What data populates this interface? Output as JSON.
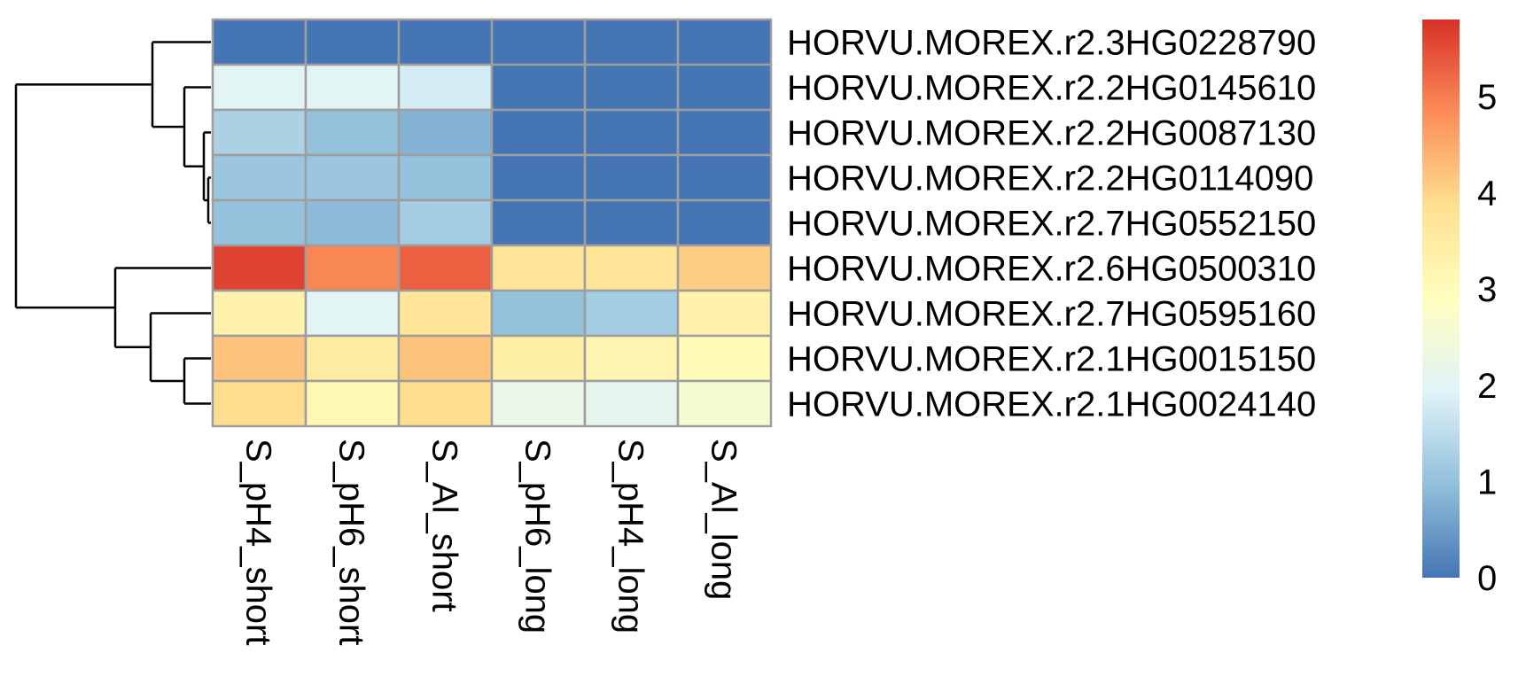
{
  "chart_data": {
    "type": "heatmap",
    "columns": [
      "S_pH4_short",
      "S_pH6_short",
      "S_Al_short",
      "S_pH6_long",
      "S_pH4_long",
      "S_Al_long"
    ],
    "rows": [
      "HORVU.MOREX.r2.3HG0228790",
      "HORVU.MOREX.r2.2HG0145610",
      "HORVU.MOREX.r2.2HG0087130",
      "HORVU.MOREX.r2.2HG0114090",
      "HORVU.MOREX.r2.7HG0552150",
      "HORVU.MOREX.r2.6HG0500310",
      "HORVU.MOREX.r2.7HG0595160",
      "HORVU.MOREX.r2.1HG0015150",
      "HORVU.MOREX.r2.1HG0024140"
    ],
    "values": [
      [
        0.0,
        0.0,
        0.0,
        0.0,
        0.0,
        0.0
      ],
      [
        2.0,
        2.0,
        1.8,
        0.0,
        0.0,
        0.0
      ],
      [
        1.3,
        1.0,
        0.8,
        0.0,
        0.0,
        0.0
      ],
      [
        1.1,
        1.1,
        1.0,
        0.0,
        0.0,
        0.0
      ],
      [
        1.0,
        0.9,
        1.2,
        0.0,
        0.0,
        0.0
      ],
      [
        5.6,
        4.9,
        5.3,
        3.7,
        3.7,
        4.1
      ],
      [
        3.3,
        2.0,
        3.7,
        1.0,
        1.2,
        3.3
      ],
      [
        4.2,
        3.5,
        4.2,
        3.4,
        3.2,
        3.0
      ],
      [
        3.9,
        3.1,
        3.9,
        2.2,
        2.1,
        2.6
      ]
    ],
    "colorbar": {
      "ticks": [
        0,
        1,
        2,
        3,
        4,
        5
      ],
      "range": [
        0,
        5.8
      ],
      "colors": [
        "#4575B4",
        "#91BFDB",
        "#E0F3F8",
        "#FFFFBF",
        "#FEE090",
        "#FC8D59",
        "#D73027"
      ]
    },
    "row_dendrogram": true,
    "grid_color": "#9E9E9E",
    "legend_position": "right"
  }
}
